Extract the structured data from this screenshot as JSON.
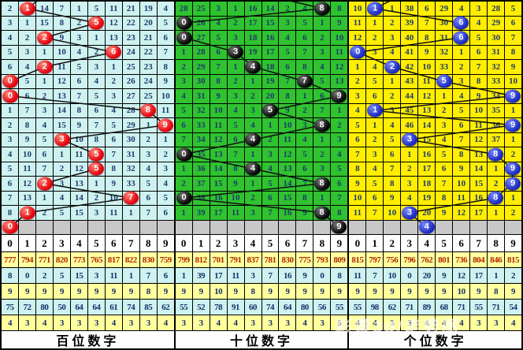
{
  "column_headers": [
    "0",
    "1",
    "2",
    "3",
    "4",
    "5",
    "6",
    "7",
    "8",
    "9"
  ],
  "watermark": "彩票3d/走势图",
  "chart_data": {
    "type": "table",
    "columns": [
      "0",
      "1",
      "2",
      "3",
      "4",
      "5",
      "6",
      "7",
      "8",
      "9"
    ],
    "series": [
      {
        "name": "百位数字",
        "drawn_digits": [
          1,
          5,
          2,
          6,
          2,
          0,
          0,
          8,
          9,
          3,
          5,
          5,
          2,
          7,
          1,
          0
        ]
      },
      {
        "name": "十位数字",
        "drawn_digits": [
          8,
          0,
          0,
          3,
          4,
          7,
          9,
          5,
          8,
          4,
          0,
          4,
          8,
          0,
          8,
          9
        ]
      },
      {
        "name": "个位数字",
        "drawn_digits": [
          1,
          6,
          6,
          0,
          2,
          5,
          9,
          1,
          9,
          3,
          8,
          9,
          9,
          8,
          3,
          4
        ]
      }
    ]
  },
  "panels": [
    {
      "name": "hundreds",
      "label": "百位数字",
      "cell_bg": "#cef2f0",
      "ball_color": "#e3000e",
      "ball_hi": "#ff8877",
      "balls": [
        1,
        5,
        2,
        6,
        2,
        0,
        0,
        8,
        9,
        3,
        5,
        5,
        2,
        7,
        1,
        0
      ],
      "rows": [
        [
          "2",
          "",
          "14",
          "7",
          "1",
          "5",
          "11",
          "21",
          "19",
          "4"
        ],
        [
          "3",
          "1",
          "15",
          "8",
          "2",
          "",
          "12",
          "22",
          "20",
          "5"
        ],
        [
          "4",
          "2",
          "",
          "9",
          "3",
          "1",
          "13",
          "23",
          "21",
          "6"
        ],
        [
          "5",
          "3",
          "1",
          "10",
          "4",
          "2",
          "",
          "24",
          "22",
          "7"
        ],
        [
          "6",
          "4",
          "",
          "11",
          "5",
          "3",
          "1",
          "25",
          "23",
          "8"
        ],
        [
          "",
          "5",
          "1",
          "12",
          "6",
          "4",
          "2",
          "26",
          "24",
          "9"
        ],
        [
          "",
          "6",
          "2",
          "13",
          "7",
          "5",
          "3",
          "27",
          "25",
          "10"
        ],
        [
          "1",
          "7",
          "3",
          "14",
          "8",
          "6",
          "4",
          "28",
          "",
          "11"
        ],
        [
          "2",
          "8",
          "4",
          "15",
          "9",
          "7",
          "5",
          "29",
          "1",
          ""
        ],
        [
          "3",
          "9",
          "5",
          "",
          "10",
          "8",
          "6",
          "30",
          "2",
          "1"
        ],
        [
          "4",
          "10",
          "6",
          "1",
          "11",
          "",
          "7",
          "31",
          "3",
          "2"
        ],
        [
          "5",
          "11",
          "7",
          "2",
          "12",
          "",
          "8",
          "32",
          "4",
          "3"
        ],
        [
          "6",
          "12",
          "",
          "3",
          "13",
          "1",
          "9",
          "33",
          "5",
          "4"
        ],
        [
          "7",
          "13",
          "1",
          "4",
          "14",
          "2",
          "10",
          "",
          "6",
          "5"
        ],
        [
          "8",
          "",
          "2",
          "5",
          "15",
          "3",
          "11",
          "1",
          "7",
          "6"
        ],
        [
          "",
          "",
          "",
          "",
          "",
          "",
          "",
          "",
          "",
          ""
        ]
      ],
      "stats": [
        [
          "777",
          "794",
          "771",
          "820",
          "773",
          "765",
          "817",
          "822",
          "830",
          "759"
        ],
        [
          "8",
          "0",
          "2",
          "5",
          "15",
          "3",
          "11",
          "1",
          "7",
          "6"
        ],
        [
          "9",
          "9",
          "9",
          "9",
          "9",
          "9",
          "9",
          "9",
          "8",
          "9"
        ],
        [
          "75",
          "72",
          "80",
          "50",
          "64",
          "64",
          "61",
          "74",
          "85",
          "62"
        ],
        [
          "4",
          "3",
          "4",
          "3",
          "3",
          "3",
          "4",
          "3",
          "3",
          "4"
        ]
      ]
    },
    {
      "name": "tens",
      "label": "十位数字",
      "cell_bg": "#2fc32f",
      "ball_color": "#050505",
      "ball_hi": "#777777",
      "balls": [
        8,
        0,
        0,
        3,
        4,
        7,
        9,
        5,
        8,
        4,
        0,
        4,
        8,
        0,
        8,
        9
      ],
      "rows": [
        [
          "28",
          "25",
          "3",
          "1",
          "16",
          "14",
          "2",
          "4",
          "",
          "8"
        ],
        [
          "",
          "26",
          "4",
          "2",
          "17",
          "15",
          "3",
          "5",
          "1",
          "9"
        ],
        [
          "",
          "27",
          "5",
          "3",
          "18",
          "16",
          "4",
          "6",
          "2",
          "10"
        ],
        [
          "1",
          "28",
          "6",
          "",
          "19",
          "17",
          "5",
          "7",
          "3",
          "11"
        ],
        [
          "2",
          "29",
          "7",
          "1",
          "",
          "18",
          "6",
          "8",
          "4",
          "12"
        ],
        [
          "3",
          "30",
          "8",
          "2",
          "1",
          "19",
          "7",
          "",
          "5",
          "13"
        ],
        [
          "4",
          "31",
          "9",
          "3",
          "2",
          "20",
          "8",
          "1",
          "6",
          ""
        ],
        [
          "5",
          "32",
          "10",
          "4",
          "3",
          "",
          "9",
          "2",
          "7",
          "1"
        ],
        [
          "6",
          "33",
          "11",
          "5",
          "4",
          "1",
          "10",
          "3",
          "",
          "2"
        ],
        [
          "7",
          "34",
          "12",
          "6",
          "",
          "2",
          "11",
          "4",
          "1",
          "3"
        ],
        [
          "",
          "35",
          "13",
          "7",
          "1",
          "3",
          "12",
          "5",
          "2",
          "4"
        ],
        [
          "1",
          "36",
          "14",
          "8",
          "",
          "4",
          "13",
          "6",
          "3",
          "5"
        ],
        [
          "2",
          "37",
          "15",
          "9",
          "1",
          "5",
          "14",
          "7",
          "",
          "6"
        ],
        [
          "",
          "38",
          "16",
          "10",
          "2",
          "6",
          "15",
          "8",
          "1",
          "7"
        ],
        [
          "1",
          "39",
          "17",
          "11",
          "3",
          "7",
          "16",
          "9",
          "",
          "8"
        ],
        [
          "",
          "",
          "",
          "",
          "",
          "",
          "",
          "",
          "",
          ""
        ]
      ],
      "stats": [
        [
          "799",
          "812",
          "701",
          "791",
          "837",
          "781",
          "830",
          "775",
          "793",
          "809"
        ],
        [
          "1",
          "39",
          "17",
          "11",
          "3",
          "7",
          "16",
          "9",
          "0",
          "8"
        ],
        [
          "9",
          "9",
          "10",
          "9",
          "8",
          "9",
          "9",
          "9",
          "9",
          "9"
        ],
        [
          "55",
          "52",
          "78",
          "91",
          "60",
          "74",
          "64",
          "80",
          "56",
          "55"
        ],
        [
          "3",
          "3",
          "4",
          "4",
          "3",
          "3",
          "3",
          "4",
          "3",
          "5"
        ]
      ]
    },
    {
      "name": "units",
      "label": "个位数字",
      "cell_bg": "#ffee00",
      "ball_color": "#1b2ac0",
      "ball_hi": "#7788ff",
      "balls": [
        1,
        6,
        6,
        0,
        2,
        5,
        9,
        1,
        9,
        3,
        8,
        9,
        9,
        8,
        3,
        4
      ],
      "rows": [
        [
          "10",
          "",
          "1",
          "38",
          "6",
          "29",
          "4",
          "3",
          "28",
          "5"
        ],
        [
          "11",
          "1",
          "2",
          "39",
          "7",
          "30",
          "",
          "4",
          "29",
          "6"
        ],
        [
          "12",
          "2",
          "3",
          "40",
          "8",
          "31",
          "",
          "5",
          "30",
          "7"
        ],
        [
          "",
          "3",
          "4",
          "41",
          "9",
          "32",
          "1",
          "6",
          "31",
          "8"
        ],
        [
          "1",
          "4",
          "",
          "42",
          "10",
          "33",
          "2",
          "7",
          "32",
          "9"
        ],
        [
          "2",
          "5",
          "1",
          "43",
          "11",
          "",
          "3",
          "8",
          "33",
          "10"
        ],
        [
          "3",
          "6",
          "2",
          "44",
          "12",
          "1",
          "4",
          "9",
          "34",
          ""
        ],
        [
          "4",
          "",
          "3",
          "45",
          "13",
          "2",
          "5",
          "10",
          "35",
          "1"
        ],
        [
          "5",
          "1",
          "4",
          "46",
          "14",
          "3",
          "6",
          "11",
          "36",
          ""
        ],
        [
          "6",
          "2",
          "5",
          "",
          "15",
          "4",
          "7",
          "12",
          "37",
          "1"
        ],
        [
          "7",
          "3",
          "6",
          "1",
          "16",
          "5",
          "8",
          "13",
          "",
          "2"
        ],
        [
          "8",
          "4",
          "7",
          "2",
          "17",
          "6",
          "9",
          "14",
          "1",
          ""
        ],
        [
          "9",
          "5",
          "8",
          "3",
          "18",
          "7",
          "10",
          "15",
          "2",
          ""
        ],
        [
          "10",
          "6",
          "9",
          "4",
          "19",
          "8",
          "11",
          "16",
          "",
          "1"
        ],
        [
          "11",
          "7",
          "10",
          "",
          "20",
          "9",
          "12",
          "17",
          "1",
          "2"
        ],
        [
          "",
          "",
          "",
          "",
          "",
          "",
          "",
          "",
          "",
          ""
        ]
      ],
      "stats": [
        [
          "815",
          "797",
          "756",
          "796",
          "762",
          "801",
          "736",
          "804",
          "846",
          "815"
        ],
        [
          "11",
          "7",
          "10",
          "0",
          "20",
          "9",
          "12",
          "17",
          "1",
          "2"
        ],
        [
          "9",
          "9",
          "9",
          "9",
          "9",
          "9",
          "10",
          "9",
          "8",
          "9"
        ],
        [
          "55",
          "98",
          "62",
          "71",
          "89",
          "68",
          "71",
          "55",
          "71",
          "54"
        ],
        [
          "4",
          "4",
          "3",
          "3",
          "4",
          "4",
          "4",
          "3",
          "3",
          "4"
        ]
      ]
    }
  ]
}
